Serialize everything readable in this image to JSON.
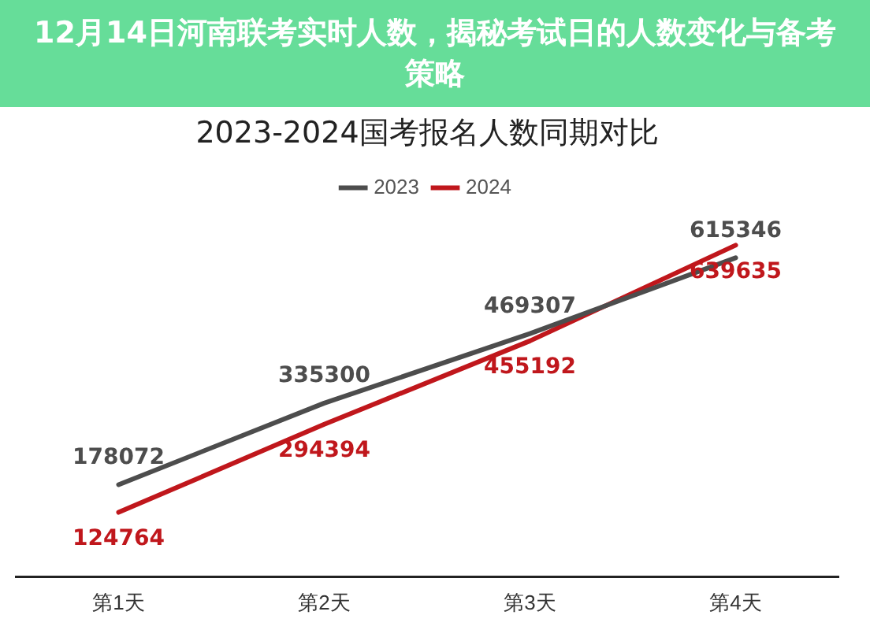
{
  "chart_data": {
    "type": "line",
    "title": "2023-2024国考报名人数同期对比",
    "annotations": [
      "12月14日河南联考实时人数，揭秘考试日的人数变化与备考策略"
    ],
    "categories": [
      "第1天",
      "第2天",
      "第3天",
      "第4天"
    ],
    "series": [
      {
        "name": "2023",
        "color": "#4d4d4d",
        "values": [
          178072,
          335300,
          469307,
          615346
        ]
      },
      {
        "name": "2024",
        "color": "#c0171c",
        "values": [
          124764,
          294394,
          455192,
          639635
        ]
      }
    ],
    "tick_labels": "x",
    "data_labels": true,
    "legend": "top",
    "grid": false,
    "marker": "none"
  }
}
